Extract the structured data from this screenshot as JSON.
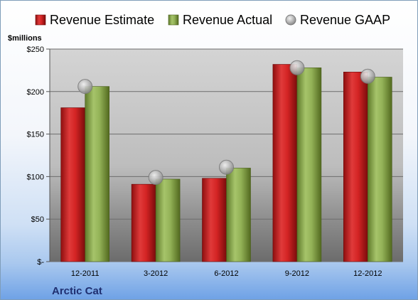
{
  "chart_data": {
    "type": "bar",
    "company": "Arctic Cat",
    "ylabel": "$millions",
    "categories": [
      "12-2011",
      "3-2012",
      "6-2012",
      "9-2012",
      "12-2012"
    ],
    "series": [
      {
        "name": "Revenue Estimate",
        "color": "#cc1f1f",
        "values": [
          181,
          91,
          98,
          232,
          223
        ]
      },
      {
        "name": "Revenue Actual",
        "color": "#8aa84a",
        "values": [
          206,
          97,
          110,
          228,
          217
        ]
      },
      {
        "name": "Revenue GAAP",
        "color": "#b9b9b9",
        "marker": "circle",
        "values": [
          206,
          99,
          111,
          228,
          218
        ]
      }
    ],
    "ylim": [
      0,
      250
    ],
    "yticks": [
      0,
      50,
      100,
      150,
      200,
      250
    ],
    "ytick_labels": [
      "$-",
      "$50",
      "$100",
      "$150",
      "$200",
      "$250"
    ],
    "grid": true,
    "legend": "top"
  }
}
